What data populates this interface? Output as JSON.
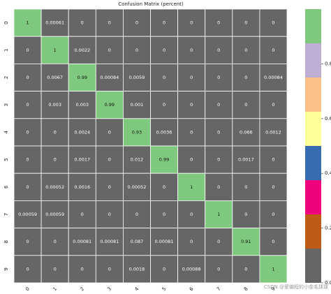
{
  "chart_data": {
    "type": "heatmap",
    "title": "Confusion Matrix (percent)",
    "x": [
      "0",
      "1",
      "2",
      "3",
      "4",
      "5",
      "6",
      "7",
      "8",
      "9"
    ],
    "y": [
      "0",
      "1",
      "2",
      "3",
      "4",
      "5",
      "6",
      "7",
      "8",
      "9"
    ],
    "values": [
      [
        1,
        0.00061,
        0,
        0,
        0,
        0,
        0,
        0,
        0,
        0
      ],
      [
        0,
        1,
        0.0022,
        0,
        0,
        0,
        0,
        0,
        0,
        0
      ],
      [
        0,
        0.0067,
        0.99,
        0.00084,
        0.0059,
        0,
        0,
        0,
        0,
        0.00084
      ],
      [
        0,
        0.003,
        0.003,
        0.99,
        0.001,
        0,
        0,
        0,
        0,
        0
      ],
      [
        0,
        0,
        0.0024,
        0,
        0.93,
        0.0036,
        0,
        0,
        0.066,
        0.0012
      ],
      [
        0,
        0,
        0.0017,
        0,
        0.012,
        0.99,
        0,
        0,
        0.0017,
        0
      ],
      [
        0,
        0.00052,
        0.0016,
        0,
        0.00052,
        0,
        1,
        0,
        0,
        0
      ],
      [
        0.00059,
        0.00059,
        0,
        0,
        0,
        0,
        0,
        1,
        0,
        0
      ],
      [
        0,
        0,
        0.00081,
        0.00081,
        0.087,
        0.00081,
        0,
        0,
        0.91,
        0
      ],
      [
        0,
        0,
        0,
        0,
        0.0018,
        0,
        0.00088,
        0,
        0,
        1
      ]
    ],
    "colormap": [
      "#666666",
      "#bf5b17",
      "#f0027f",
      "#386cb0",
      "#ffff99",
      "#fdc086",
      "#beaed4",
      "#7fc97f"
    ],
    "clim": [
      0,
      1
    ],
    "colorbar_ticks": [
      {
        "value": 0,
        "label": "0.0"
      },
      0.2,
      0.4,
      0.6,
      0.8
    ],
    "watermark": "CSDN @爱编程的小金毛球球"
  }
}
